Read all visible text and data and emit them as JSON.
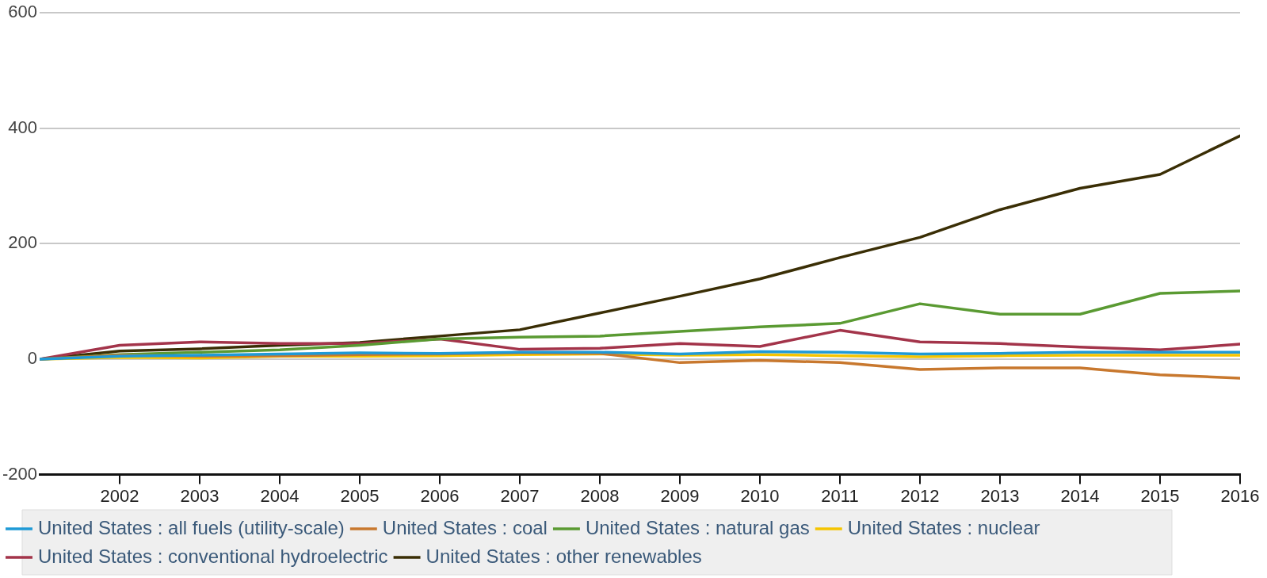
{
  "chart_data": {
    "type": "line",
    "x": [
      2001,
      2002,
      2003,
      2004,
      2005,
      2006,
      2007,
      2008,
      2009,
      2010,
      2011,
      2012,
      2013,
      2014,
      2015,
      2016
    ],
    "series": [
      {
        "name": "United States : all fuels (utility-scale)",
        "color": "#1f9ad6",
        "values": [
          0,
          5,
          7,
          9,
          11,
          10,
          12,
          12,
          9,
          13,
          12,
          9,
          10,
          12,
          12,
          12
        ]
      },
      {
        "name": "United States : coal",
        "color": "#c8782e",
        "values": [
          0,
          7,
          5,
          6,
          8,
          9,
          11,
          10,
          -6,
          -2,
          -6,
          -18,
          -15,
          -15,
          -27,
          -33
        ]
      },
      {
        "name": "United States : natural gas",
        "color": "#5a9a32",
        "values": [
          0,
          8,
          12,
          16,
          24,
          35,
          38,
          40,
          48,
          56,
          62,
          96,
          78,
          78,
          114,
          118
        ]
      },
      {
        "name": "United States : nuclear",
        "color": "#f5c400",
        "values": [
          0,
          3,
          2,
          5,
          5,
          6,
          8,
          9,
          7,
          8,
          6,
          4,
          6,
          7,
          7,
          7
        ]
      },
      {
        "name": "United States : conventional hydroelectric",
        "color": "#a3344a",
        "values": [
          0,
          24,
          30,
          27,
          27,
          35,
          17,
          19,
          27,
          22,
          50,
          30,
          27,
          21,
          16,
          26
        ]
      },
      {
        "name": "United States : other renewables",
        "color": "#3a2e05",
        "values": [
          0,
          14,
          18,
          24,
          29,
          40,
          51,
          80,
          109,
          139,
          176,
          211,
          259,
          296,
          320,
          387
        ]
      }
    ],
    "xlim": [
      2001,
      2016
    ],
    "xticks": [
      2002,
      2003,
      2004,
      2005,
      2006,
      2007,
      2008,
      2009,
      2010,
      2011,
      2012,
      2013,
      2014,
      2015,
      2016
    ],
    "ylim": [
      -200,
      600
    ],
    "yticks": [
      -200,
      0,
      200,
      400,
      600
    ],
    "grid": "y",
    "legend": "bottom",
    "marker": "none",
    "line_style": "solid"
  }
}
